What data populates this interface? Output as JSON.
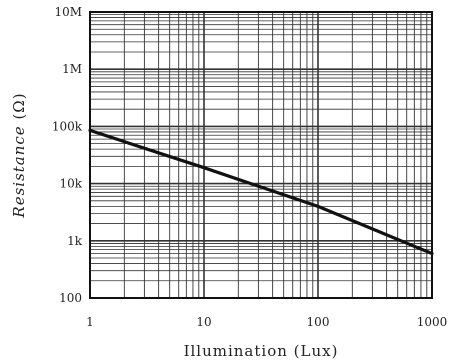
{
  "chart_data": {
    "type": "line",
    "xlabel": "Illumination (Lux)",
    "ylabel_main": "Resistance ",
    "ylabel_unit": "(Ω)",
    "x_scale": "log",
    "y_scale": "log",
    "xlim": [
      1,
      1000
    ],
    "ylim": [
      100,
      10000000
    ],
    "x_ticks": [
      {
        "value": 1,
        "label": "1"
      },
      {
        "value": 10,
        "label": "10"
      },
      {
        "value": 100,
        "label": "100"
      },
      {
        "value": 1000,
        "label": "1000"
      }
    ],
    "y_ticks": [
      {
        "value": 100,
        "label": "100"
      },
      {
        "value": 1000,
        "label": "1k"
      },
      {
        "value": 10000,
        "label": "10k"
      },
      {
        "value": 100000,
        "label": "100k"
      },
      {
        "value": 1000000,
        "label": "1M"
      },
      {
        "value": 10000000,
        "label": "10M"
      }
    ],
    "grid": true,
    "series": [
      {
        "x": [
          1,
          10,
          100,
          700,
          1000
        ],
        "y": [
          85000,
          19000,
          4000,
          800,
          600
        ]
      }
    ],
    "colors": {
      "line": "#111111",
      "grid": "#333333",
      "frame": "#111111"
    }
  }
}
